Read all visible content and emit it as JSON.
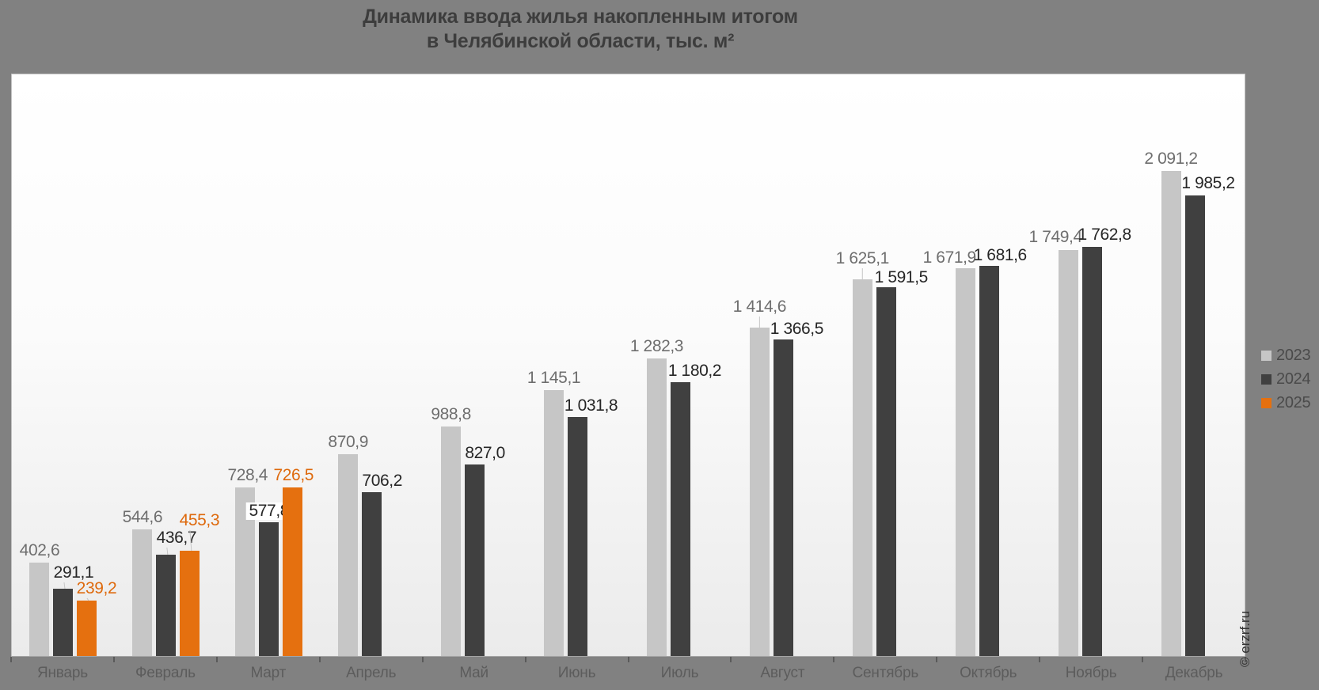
{
  "title": {
    "line1": "Динамика ввода жилья накопленным итогом",
    "line2": "в Челябинской области, тыс. м²"
  },
  "watermark": "© erzrf.ru",
  "colors": {
    "background": "#818181",
    "plot_gradient_top": "#ffffff",
    "plot_gradient_bottom": "#ebebeb",
    "title_text": "#3d3d3d",
    "axis_label_text": "#5c5c5c",
    "legend_text": "#4a4a4a",
    "leader_line": "#c6c6c6"
  },
  "chart_data": {
    "type": "bar",
    "title": "Динамика ввода жилья накопленным итогом в Челябинской области, тыс. м²",
    "categories": [
      "Январь",
      "Февраль",
      "Март",
      "Апрель",
      "Май",
      "Июнь",
      "Июль",
      "Август",
      "Сентябрь",
      "Октябрь",
      "Ноябрь",
      "Декабрь"
    ],
    "series": [
      {
        "name": "2023",
        "color": "#C6C6C6",
        "label_color": "#6E6E6E",
        "values": [
          402.6,
          544.6,
          728.4,
          870.9,
          988.8,
          1145.1,
          1282.3,
          1414.6,
          1625.1,
          1671.9,
          1749.4,
          2091.2
        ],
        "labels": [
          "402,6",
          "544,6",
          "728,4",
          "870,9",
          "988,8",
          "1 145,1",
          "1 282,3",
          "1 414,6",
          "1 625,1",
          "1 671,9",
          "1 749,4",
          "2 091,2"
        ]
      },
      {
        "name": "2024",
        "color": "#404040",
        "label_color": "#262626",
        "values": [
          291.1,
          436.7,
          577.8,
          706.2,
          827.0,
          1031.8,
          1180.2,
          1366.5,
          1591.5,
          1681.6,
          1762.8,
          1985.2
        ],
        "labels": [
          "291,1",
          "436,7",
          "577,8",
          "706,2",
          "827,0",
          "1 031,8",
          "1 180,2",
          "1 366,5",
          "1 591,5",
          "1 681,6",
          "1 762,8",
          "1 985,2"
        ]
      },
      {
        "name": "2025",
        "color": "#E5700F",
        "label_color": "#DE690C",
        "values": [
          239.2,
          455.3,
          726.5,
          null,
          null,
          null,
          null,
          null,
          null,
          null,
          null,
          null
        ],
        "labels": [
          "239,2",
          "455,3",
          "726,5",
          null,
          null,
          null,
          null,
          null,
          null,
          null,
          null,
          null
        ]
      }
    ],
    "ylim": [
      0,
      2515
    ],
    "grid": false,
    "legend_position": "right",
    "legend": [
      "2023",
      "2024",
      "2025"
    ]
  }
}
